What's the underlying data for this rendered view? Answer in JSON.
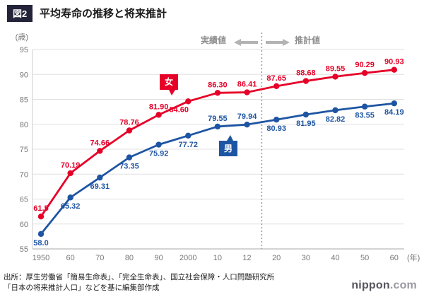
{
  "header": {
    "figure_label": "図2",
    "title": "平均寿命の推移と将来推計"
  },
  "chart_data": {
    "type": "line",
    "title": "平均寿命の推移と将来推計",
    "x_categories": [
      "1950",
      "60",
      "70",
      "80",
      "90",
      "2000",
      "10",
      "12",
      "20",
      "30",
      "40",
      "50",
      "60"
    ],
    "x_unit": "(年)",
    "y_unit": "(歳)",
    "ylim": [
      55,
      95
    ],
    "y_ticks": [
      55,
      60,
      65,
      70,
      75,
      80,
      85,
      90,
      95
    ],
    "grid": true,
    "divider_between_indices": [
      7,
      8
    ],
    "legend": {
      "actual": "実績値",
      "projected": "推計値"
    },
    "series": [
      {
        "name": "女",
        "color": "#e60028",
        "values": [
          61.5,
          70.19,
          74.66,
          78.76,
          81.9,
          84.6,
          86.3,
          86.41,
          87.65,
          88.68,
          89.55,
          90.29,
          90.93
        ],
        "labels": [
          "61.5",
          "70.19",
          "74.66",
          "78.76",
          "81.90",
          "84.60",
          "86.30",
          "86.41",
          "87.65",
          "88.68",
          "89.55",
          "90.29",
          "90.93"
        ],
        "label_side": [
          "above",
          "above",
          "above",
          "above",
          "above",
          "below-left",
          "above",
          "above",
          "above",
          "above",
          "above",
          "above",
          "above"
        ]
      },
      {
        "name": "男",
        "color": "#1e55a3",
        "values": [
          58.0,
          65.32,
          69.31,
          73.35,
          75.92,
          77.72,
          79.55,
          79.94,
          80.93,
          81.95,
          82.82,
          83.55,
          84.19
        ],
        "labels": [
          "58.0",
          "65.32",
          "69.31",
          "73.35",
          "75.92",
          "77.72",
          "79.55",
          "79.94",
          "80.93",
          "81.95",
          "82.82",
          "83.55",
          "84.19"
        ],
        "label_side": [
          "below",
          "below",
          "below",
          "below",
          "below",
          "below",
          "above",
          "above",
          "below",
          "below",
          "below",
          "below",
          "below"
        ]
      }
    ]
  },
  "footer": {
    "source_line1": "出所：厚生労働省「簡易生命表」、「完全生命表」、国立社会保障・人口問題研究所",
    "source_line2": "「日本の将来推計人口」などを基に編集部作成",
    "logo_main": "nippon",
    "logo_suffix": ".com"
  }
}
